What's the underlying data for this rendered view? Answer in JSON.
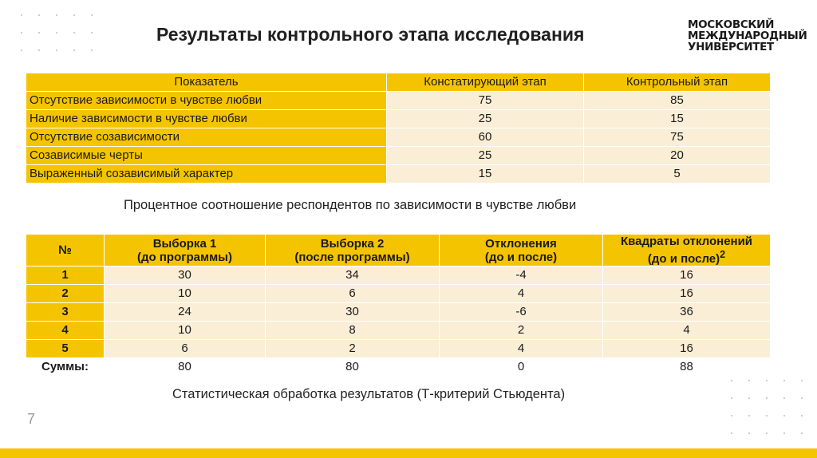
{
  "slide": {
    "title": "Результаты контрольного этапа исследования",
    "page_number": "7",
    "accent_color": "#f5c400",
    "cell_color": "#fbeed7"
  },
  "logo": {
    "line1": "МОСКОВСКИЙ",
    "line2": "МЕЖДУНАРОДНЫЙ",
    "line3": "УНИВЕРСИТЕТ"
  },
  "table1": {
    "headers": [
      "Показатель",
      "Констатирующий этап",
      "Контрольный этап"
    ],
    "rows": [
      {
        "label": "Отсутствие зависимости в чувстве любви",
        "stage1": "75",
        "stage2": "85"
      },
      {
        "label": "Наличие зависимости в чувстве любви",
        "stage1": "25",
        "stage2": "15"
      },
      {
        "label": "Отсутствие созависимости",
        "stage1": "60",
        "stage2": "75"
      },
      {
        "label": "Созависимые черты",
        "stage1": "25",
        "stage2": "20"
      },
      {
        "label": "Выраженный созависимый характер",
        "stage1": "15",
        "stage2": "5"
      }
    ]
  },
  "caption1": "Процентное соотношение респондентов по зависимости в чувстве любви",
  "table2": {
    "headers": [
      {
        "line1": "№",
        "line2": ""
      },
      {
        "line1": "Выборка 1",
        "line2": "(до программы)"
      },
      {
        "line1": "Выборка 2",
        "line2": "(после программы)"
      },
      {
        "line1": "Отклонения",
        "line2": "(до и после)"
      },
      {
        "line1": "Квадраты отклонений",
        "line2": "(до и после)",
        "sup": "2"
      }
    ],
    "rows": [
      {
        "n": "1",
        "s1": "30",
        "s2": "34",
        "dev": "-4",
        "sq": "16"
      },
      {
        "n": "2",
        "s1": "10",
        "s2": "6",
        "dev": "4",
        "sq": "16"
      },
      {
        "n": "3",
        "s1": "24",
        "s2": "30",
        "dev": "-6",
        "sq": "36"
      },
      {
        "n": "4",
        "s1": "10",
        "s2": "8",
        "dev": "2",
        "sq": "4"
      },
      {
        "n": "5",
        "s1": "6",
        "s2": "2",
        "dev": "4",
        "sq": "16"
      }
    ],
    "sums": {
      "label": "Суммы:",
      "s1": "80",
      "s2": "80",
      "dev": "0",
      "sq": "88"
    }
  },
  "caption2": "Статистическая обработка результатов (Т-критерий Стьюдента)"
}
